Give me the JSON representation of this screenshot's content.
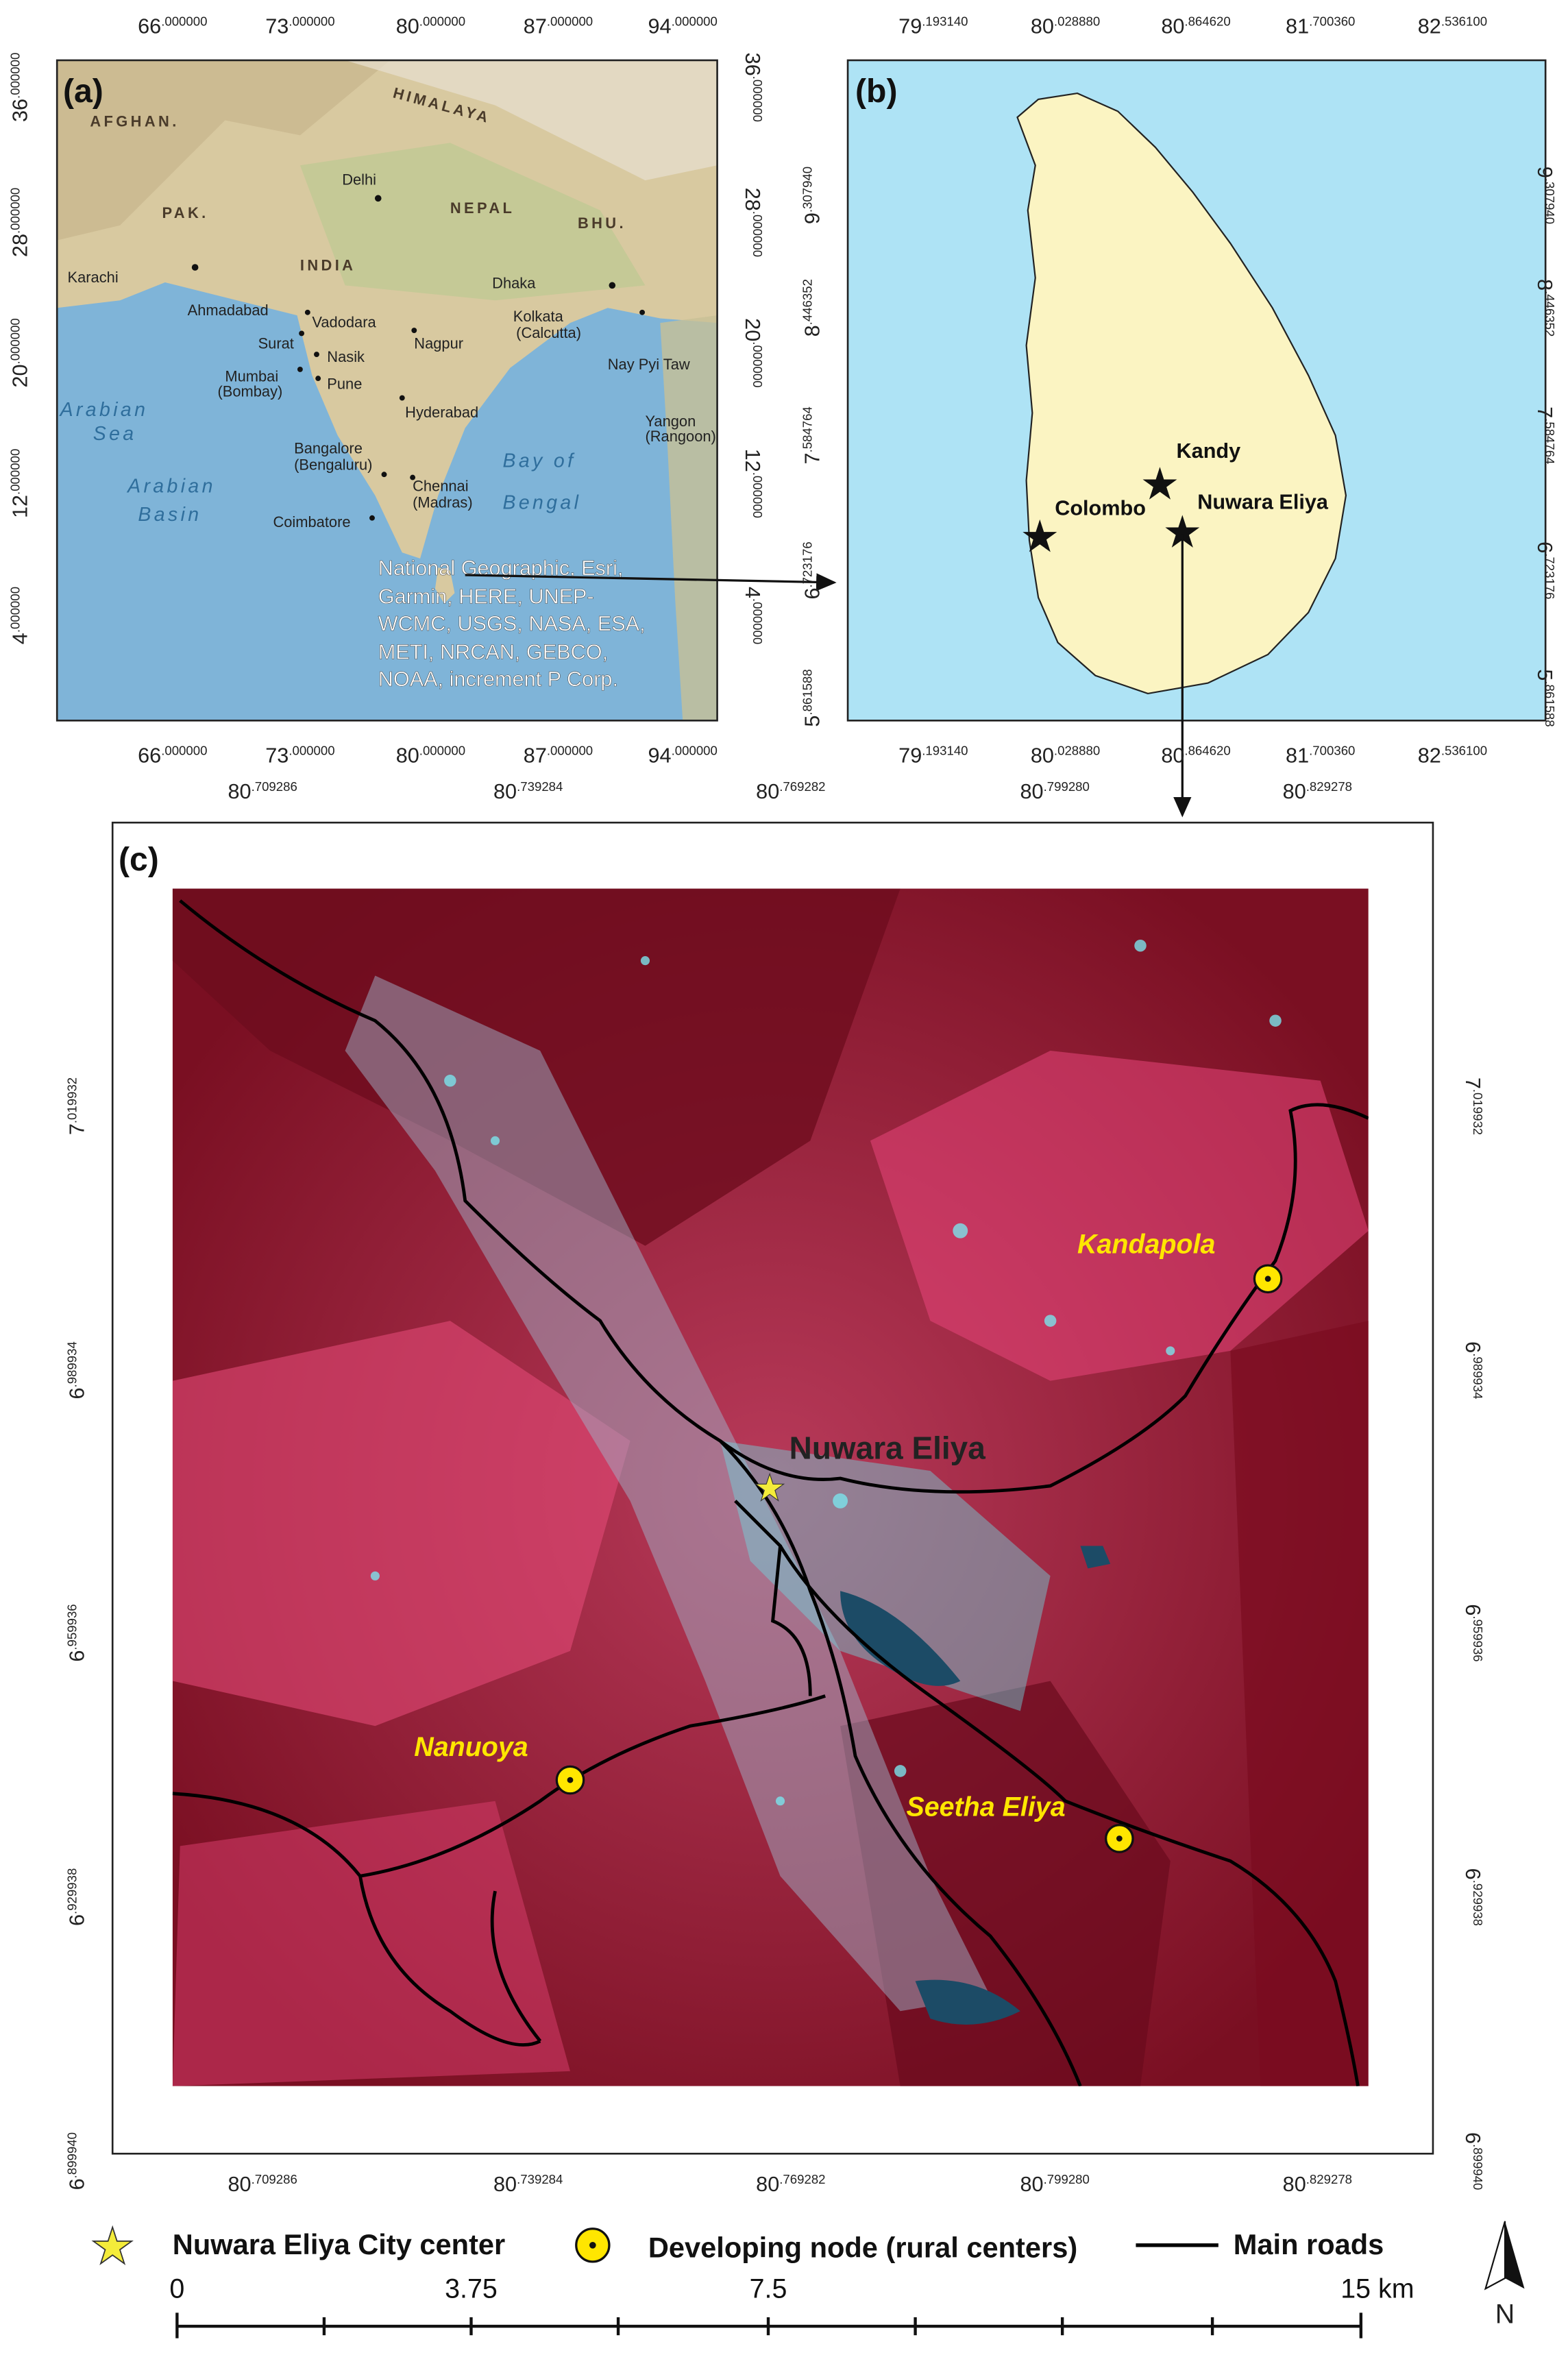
{
  "panel_a": {
    "label": "(a)",
    "x_ticks": [
      "66.000000",
      "73.000000",
      "80.000000",
      "87.000000",
      "94.000000"
    ],
    "y_ticks": [
      "36.000000",
      "28.000000",
      "20.000000",
      "12.000000",
      "4.000000"
    ],
    "places": [
      "AFGHAN.",
      "HIMALAYA",
      "PAK.",
      "Delhi",
      "NEPAL",
      "BHU.",
      "INDIA",
      "Karachi",
      "Dhaka",
      "Ahmadabad",
      "Vadodara",
      "Kolkata",
      "(Calcutta)",
      "Surat",
      "Nasik",
      "Nagpur",
      "Mumbai",
      "(Bombay)",
      "Pune",
      "Nay Pyi Taw",
      "Hyderabad",
      "Arabian",
      "Sea",
      "Arabian",
      "Basin",
      "Bay of",
      "Bengal",
      "Bangalore",
      "(Bengaluru)",
      "Chennai",
      "(Madras)",
      "Coimbatore",
      "Yangon",
      "(Rangoon)"
    ],
    "attribution": [
      "National Geographic, Esri,",
      "Garmin, HERE, UNEP-",
      "WCMC, USGS, NASA, ESA,",
      "METI, NRCAN, GEBCO,",
      "NOAA, increment P Corp."
    ]
  },
  "panel_b": {
    "label": "(b)",
    "x_ticks": [
      "79.193140",
      "80.028880",
      "80.864620",
      "81.700360",
      "82.536100"
    ],
    "y_ticks": [
      "9.307940",
      "8.446352",
      "7.584764",
      "6.723176",
      "5.861588"
    ],
    "places": [
      "Kandy",
      "Colombo",
      "Nuwara Eliya"
    ]
  },
  "panel_c": {
    "label": "(c)",
    "x_ticks": [
      "80.709286",
      "80.739284",
      "80.769282",
      "80.799280",
      "80.829278"
    ],
    "y_ticks": [
      "7.019932",
      "6.989934",
      "6.959936",
      "6.929938",
      "6.899940"
    ],
    "city": "Nuwara Eliya",
    "nodes": [
      "Kandapola",
      "Nanuoya",
      "Seetha Eliya"
    ]
  },
  "legend": [
    "Nuwara Eliya City center",
    "Developing node (rural centers)",
    "Main roads"
  ],
  "scale_bar": [
    "0",
    "3.75",
    "7.5",
    "15 km"
  ],
  "north": "N"
}
